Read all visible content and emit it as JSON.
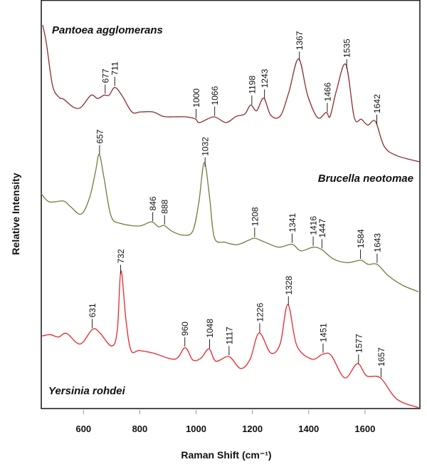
{
  "chart_data": {
    "type": "line",
    "xlabel": "Raman Shift (cm⁻¹)",
    "ylabel": "Relative Intensity",
    "xlim": [
      450,
      1795
    ],
    "ylim": [
      0,
      100
    ],
    "xticks": [
      600,
      800,
      1000,
      1200,
      1400,
      1600
    ],
    "yticks": [],
    "grid": false,
    "series": [
      {
        "name": "Pantoea agglomerans",
        "color": "#8e2b2e",
        "label_position": "top-left",
        "points": [
          [
            455,
            93.9
          ],
          [
            468,
            89.5
          ],
          [
            490,
            79.1
          ],
          [
            513,
            76.2
          ],
          [
            530,
            75.7
          ],
          [
            566,
            73.7
          ],
          [
            592,
            73.8
          ],
          [
            627,
            76.7
          ],
          [
            650,
            75.9
          ],
          [
            673,
            76.7
          ],
          [
            691,
            76.7
          ],
          [
            711,
            78.6
          ],
          [
            736,
            76.7
          ],
          [
            772,
            72.6
          ],
          [
            802,
            72.6
          ],
          [
            847,
            72.6
          ],
          [
            883,
            71.5
          ],
          [
            919,
            71.4
          ],
          [
            963,
            71.4
          ],
          [
            997,
            70.9
          ],
          [
            1013,
            70.0
          ],
          [
            1063,
            71.4
          ],
          [
            1106,
            70.0
          ],
          [
            1142,
            71.5
          ],
          [
            1173,
            72.1
          ],
          [
            1194,
            74.3
          ],
          [
            1215,
            72.9
          ],
          [
            1240,
            76.0
          ],
          [
            1265,
            71.8
          ],
          [
            1299,
            71.6
          ],
          [
            1329,
            77.3
          ],
          [
            1364,
            85.6
          ],
          [
            1396,
            76.7
          ],
          [
            1432,
            71.2
          ],
          [
            1462,
            72.5
          ],
          [
            1476,
            71.5
          ],
          [
            1499,
            77.9
          ],
          [
            1532,
            84.2
          ],
          [
            1562,
            71.2
          ],
          [
            1587,
            70.8
          ],
          [
            1610,
            69.4
          ],
          [
            1637,
            70.3
          ],
          [
            1668,
            64.2
          ],
          [
            1713,
            61.9
          ],
          [
            1794,
            60.4
          ]
        ],
        "peaks": [
          "677",
          "711",
          "1000",
          "1066",
          "1198",
          "1243",
          "1367",
          "1466",
          "1535",
          "1642"
        ]
      },
      {
        "name": "Brucella neotomae",
        "color": "#6f7d3c",
        "label_position": "right",
        "points": [
          [
            450,
            52.6
          ],
          [
            478,
            50.6
          ],
          [
            529,
            50.8
          ],
          [
            554,
            49.4
          ],
          [
            592,
            47.6
          ],
          [
            622,
            51.7
          ],
          [
            643,
            58.1
          ],
          [
            656,
            62.2
          ],
          [
            673,
            56.4
          ],
          [
            698,
            47.1
          ],
          [
            732,
            45.3
          ],
          [
            799,
            44.7
          ],
          [
            841,
            45.7
          ],
          [
            867,
            44.5
          ],
          [
            886,
            44.8
          ],
          [
            917,
            43.3
          ],
          [
            959,
            42.4
          ],
          [
            989,
            43.6
          ],
          [
            1010,
            50.6
          ],
          [
            1029,
            60.2
          ],
          [
            1048,
            51.7
          ],
          [
            1065,
            41.8
          ],
          [
            1103,
            40.7
          ],
          [
            1145,
            40.1
          ],
          [
            1187,
            41.2
          ],
          [
            1209,
            41.7
          ],
          [
            1245,
            40.7
          ],
          [
            1294,
            39.5
          ],
          [
            1341,
            40.2
          ],
          [
            1372,
            38.6
          ],
          [
            1416,
            39.5
          ],
          [
            1446,
            38.9
          ],
          [
            1488,
            36.6
          ],
          [
            1538,
            35.7
          ],
          [
            1585,
            36.3
          ],
          [
            1611,
            35.3
          ],
          [
            1643,
            35.3
          ],
          [
            1683,
            32.5
          ],
          [
            1733,
            30.2
          ],
          [
            1790,
            28.6
          ]
        ],
        "peaks": [
          "657",
          "846",
          "888",
          "1032",
          "1208",
          "1341",
          "1416",
          "1447",
          "1584",
          "1643"
        ]
      },
      {
        "name": "Yersinia rohdei",
        "color": "#e8262b",
        "label_position": "bottom-left",
        "points": [
          [
            450,
            17.7
          ],
          [
            481,
            18.1
          ],
          [
            511,
            17.5
          ],
          [
            540,
            18.4
          ],
          [
            588,
            15.8
          ],
          [
            632,
            19.4
          ],
          [
            657,
            18.6
          ],
          [
            700,
            15.3
          ],
          [
            720,
            19.1
          ],
          [
            733,
            33.7
          ],
          [
            751,
            21.5
          ],
          [
            769,
            14.2
          ],
          [
            798,
            14.2
          ],
          [
            847,
            13.6
          ],
          [
            925,
            12.1
          ],
          [
            961,
            14.9
          ],
          [
            988,
            11.9
          ],
          [
            1017,
            12.3
          ],
          [
            1046,
            14.6
          ],
          [
            1070,
            11.6
          ],
          [
            1117,
            12.7
          ],
          [
            1158,
            9.8
          ],
          [
            1192,
            12.1
          ],
          [
            1224,
            18.5
          ],
          [
            1265,
            13.6
          ],
          [
            1299,
            15.9
          ],
          [
            1326,
            25.5
          ],
          [
            1358,
            15.4
          ],
          [
            1411,
            12.1
          ],
          [
            1450,
            13.3
          ],
          [
            1480,
            13.0
          ],
          [
            1528,
            7.5
          ],
          [
            1573,
            11.0
          ],
          [
            1606,
            8.0
          ],
          [
            1655,
            7.5
          ],
          [
            1713,
            2.3
          ],
          [
            1791,
            0.2
          ]
        ],
        "peaks": [
          "631",
          "732",
          "960",
          "1048",
          "1117",
          "1226",
          "1328",
          "1451",
          "1577",
          "1657"
        ]
      }
    ]
  }
}
